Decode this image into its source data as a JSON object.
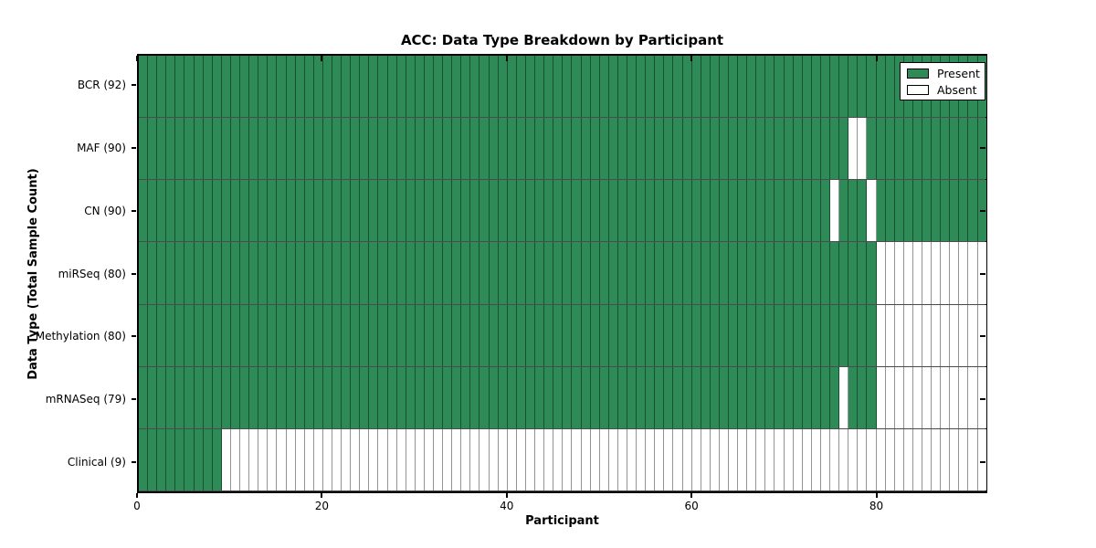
{
  "chart_data": {
    "type": "heatmap",
    "title": "ACC: Data Type Breakdown by Participant",
    "xlabel": "Participant",
    "ylabel": "Data Type (Total Sample Count)",
    "legend_labels": [
      "Present",
      "Absent"
    ],
    "legend_position": "upper right",
    "colors": {
      "present": "#2e8b57",
      "absent": "#ffffff"
    },
    "n_participants": 92,
    "xlim": [
      0,
      92
    ],
    "x_ticks": [
      0,
      20,
      40,
      60,
      80
    ],
    "grid": "cell borders",
    "rows": [
      {
        "label": "BCR (92)",
        "data_type": "BCR",
        "total_samples": 92,
        "absent_participants": []
      },
      {
        "label": "MAF (90)",
        "data_type": "MAF",
        "total_samples": 90,
        "absent_participants": [
          77,
          78
        ]
      },
      {
        "label": "CN (90)",
        "data_type": "CN",
        "total_samples": 90,
        "absent_participants": [
          75,
          79
        ]
      },
      {
        "label": "miRSeq (80)",
        "data_type": "miRSeq",
        "total_samples": 80,
        "absent_participants": [
          80,
          81,
          82,
          83,
          84,
          85,
          86,
          87,
          88,
          89,
          90,
          91
        ]
      },
      {
        "label": "Methylation (80)",
        "data_type": "Methylation",
        "total_samples": 80,
        "absent_participants": [
          80,
          81,
          82,
          83,
          84,
          85,
          86,
          87,
          88,
          89,
          90,
          91
        ]
      },
      {
        "label": "mRNASeq (79)",
        "data_type": "mRNASeq",
        "total_samples": 79,
        "absent_participants": [
          76,
          80,
          81,
          82,
          83,
          84,
          85,
          86,
          87,
          88,
          89,
          90,
          91
        ]
      },
      {
        "label": "Clinical (9)",
        "data_type": "Clinical",
        "total_samples": 9,
        "absent_participants": [
          9,
          10,
          11,
          12,
          13,
          14,
          15,
          16,
          17,
          18,
          19,
          20,
          21,
          22,
          23,
          24,
          25,
          26,
          27,
          28,
          29,
          30,
          31,
          32,
          33,
          34,
          35,
          36,
          37,
          38,
          39,
          40,
          41,
          42,
          43,
          44,
          45,
          46,
          47,
          48,
          49,
          50,
          51,
          52,
          53,
          54,
          55,
          56,
          57,
          58,
          59,
          60,
          61,
          62,
          63,
          64,
          65,
          66,
          67,
          68,
          69,
          70,
          71,
          72,
          73,
          74,
          75,
          76,
          77,
          78,
          79,
          80,
          81,
          82,
          83,
          84,
          85,
          86,
          87,
          88,
          89,
          90,
          91
        ]
      }
    ]
  }
}
